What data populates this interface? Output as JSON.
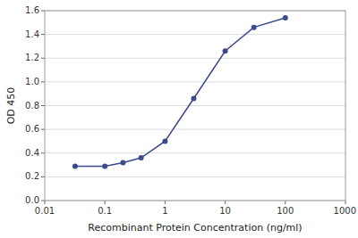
{
  "chart_data": {
    "type": "line",
    "xlabel": "Recombinant Protein Concentration (ng/ml)",
    "ylabel": "OD 450",
    "x": [
      0.032,
      0.1,
      0.2,
      0.4,
      1.0,
      3.0,
      10.0,
      30.0,
      100.0
    ],
    "values": [
      0.29,
      0.29,
      0.32,
      0.36,
      0.5,
      0.86,
      1.26,
      1.46,
      1.54
    ],
    "color": "#3a4a8c",
    "marker": "circle",
    "log": "x",
    "grid": true,
    "xlim": [
      0.01,
      1000
    ],
    "ylim": [
      0.0,
      1.6
    ],
    "xticks": [
      0.01,
      0.1,
      1,
      10,
      100,
      1000
    ],
    "yticks": [
      {
        "value": 0.0,
        "label": "0.0"
      },
      0.2,
      0.4,
      0.6,
      0.8,
      {
        "value": 1.0,
        "label": "1.0"
      },
      1.2,
      1.4,
      1.6
    ]
  }
}
